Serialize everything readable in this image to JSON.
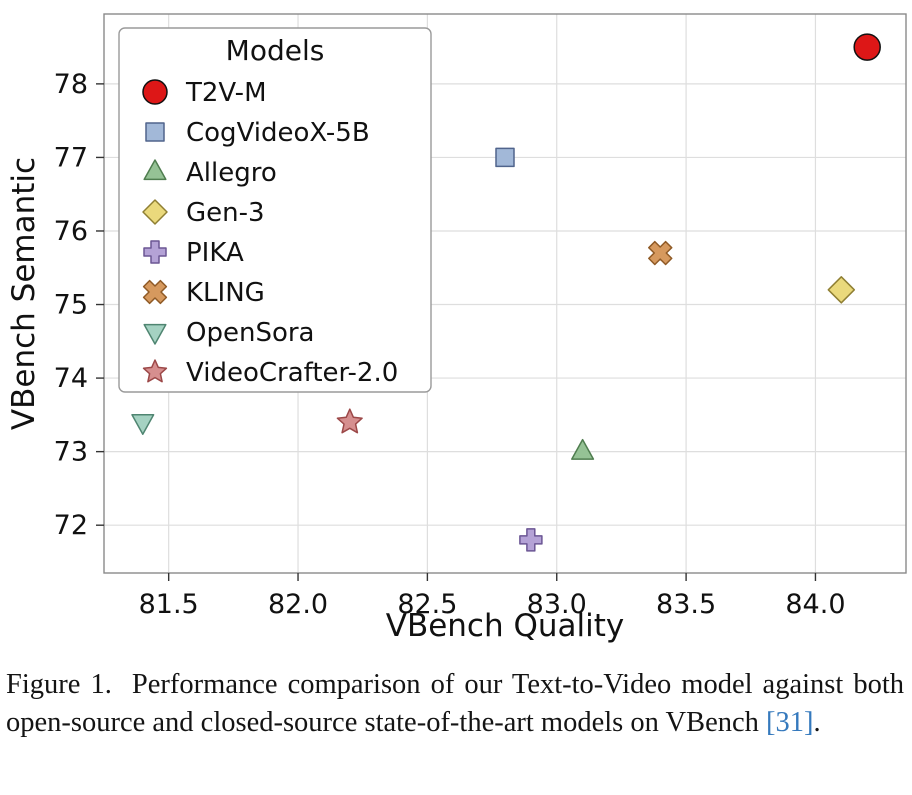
{
  "chart_data": {
    "type": "scatter",
    "xlabel": "VBench Quality",
    "ylabel": "VBench Semantic",
    "xlim": [
      81.25,
      84.35
    ],
    "ylim": [
      71.35,
      78.95
    ],
    "xticks": [
      81.5,
      82.0,
      82.5,
      83.0,
      83.5,
      84.0
    ],
    "yticks": [
      72,
      73,
      74,
      75,
      76,
      77,
      78
    ],
    "grid": true,
    "legend_title": "Models",
    "legend_position": "upper-left",
    "colors": {
      "grid": "#dedede",
      "frame": "#8a8a8a",
      "text": "#111111"
    },
    "series": [
      {
        "name": "T2V-M",
        "marker": "circle",
        "color": "#dd1717",
        "edge": "#111111",
        "x": 84.2,
        "y": 78.5,
        "size": 13
      },
      {
        "name": "CogVideoX-5B",
        "marker": "square",
        "color": "#a2b8d8",
        "edge": "#50648c",
        "x": 82.8,
        "y": 77.0,
        "size": 9
      },
      {
        "name": "Allegro",
        "marker": "triangle-up",
        "color": "#95c295",
        "edge": "#4f7d4f",
        "x": 83.1,
        "y": 73.0,
        "size": 12
      },
      {
        "name": "Gen-3",
        "marker": "diamond",
        "color": "#ead97c",
        "edge": "#8f7f33",
        "x": 84.1,
        "y": 75.2,
        "size": 13
      },
      {
        "name": "PIKA",
        "marker": "plus",
        "color": "#b4a2d6",
        "edge": "#6b5694",
        "x": 82.9,
        "y": 71.8,
        "size": 11
      },
      {
        "name": "KLING",
        "marker": "x",
        "color": "#d6995e",
        "edge": "#8f5a26",
        "x": 83.4,
        "y": 75.7,
        "size": 11
      },
      {
        "name": "OpenSora",
        "marker": "triangle-down",
        "color": "#a5d2c2",
        "edge": "#4f8571",
        "x": 81.4,
        "y": 73.4,
        "size": 12
      },
      {
        "name": "VideoCrafter-2.0",
        "marker": "star",
        "color": "#d68f8f",
        "edge": "#9c4848",
        "x": 82.2,
        "y": 73.4,
        "size": 13
      }
    ]
  },
  "caption": {
    "part1": "Figure 1.  Performance comparison of our Text-to-Video model against both open-source and closed-source state-of-the-art models on VBench ",
    "cite": "[31]",
    "part2": "."
  }
}
